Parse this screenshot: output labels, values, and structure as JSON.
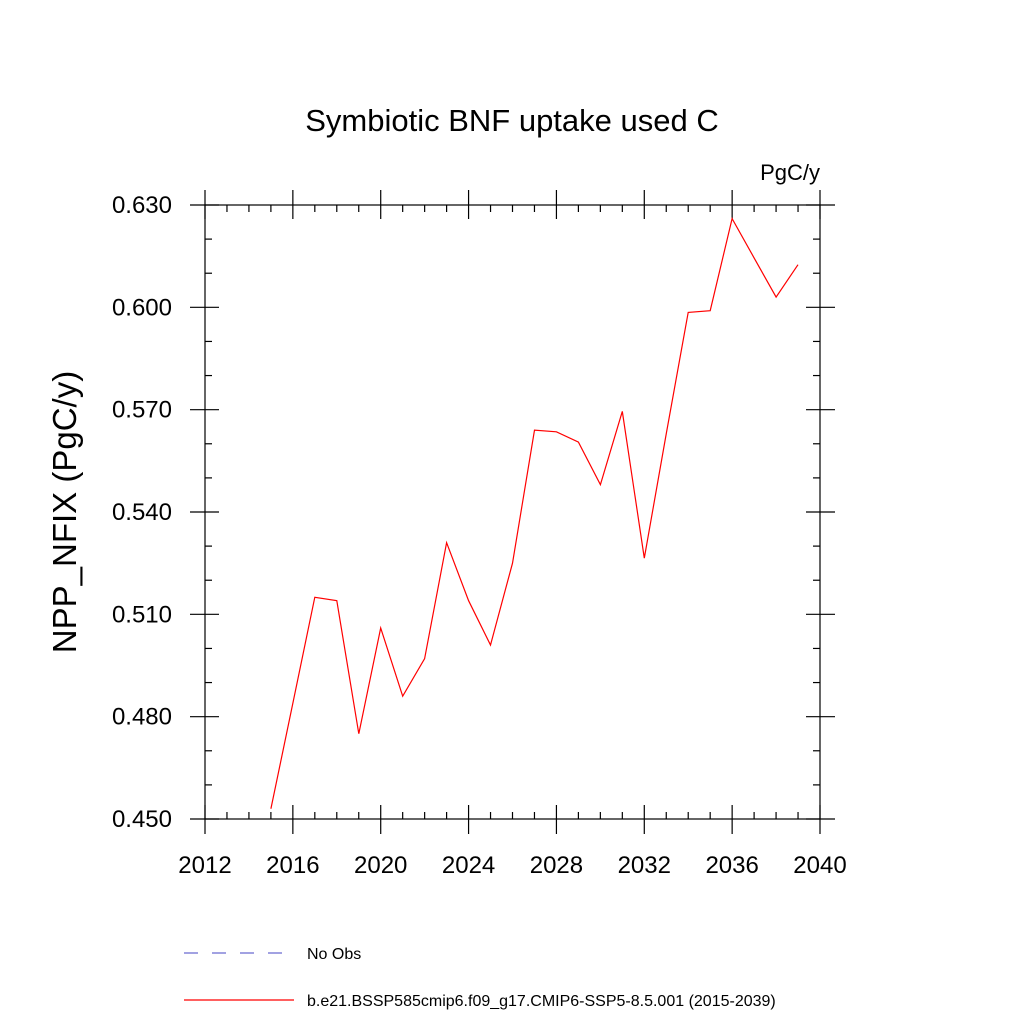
{
  "chart_data": {
    "type": "line",
    "title": "Symbiotic BNF uptake used C",
    "units": "PgC/y",
    "xlabel": "",
    "ylabel": "NPP_NFIX  (PgC/y)",
    "xlim": [
      2012,
      2040
    ],
    "ylim": [
      0.45,
      0.63
    ],
    "xticks": [
      2012,
      2016,
      2020,
      2024,
      2028,
      2032,
      2036,
      2040
    ],
    "yticks": [
      0.45,
      0.48,
      0.51,
      0.54,
      0.57,
      0.6,
      0.63
    ],
    "ytick_labels": [
      "0.450",
      "0.480",
      "0.510",
      "0.540",
      "0.570",
      "0.600",
      "0.630"
    ],
    "grid": false,
    "legend_position": "bottom",
    "series": [
      {
        "name": "b.e21.BSSP585cmip6.f09_g17.CMIP6-SSP5-8.5.001 (2015-2039)",
        "color": "#ff0000",
        "style": "solid",
        "x": [
          2015,
          2016,
          2017,
          2018,
          2019,
          2020,
          2021,
          2022,
          2023,
          2024,
          2025,
          2026,
          2027,
          2028,
          2029,
          2030,
          2031,
          2032,
          2033,
          2034,
          2035,
          2036,
          2037,
          2038,
          2039
        ],
        "y": [
          0.453,
          0.484,
          0.515,
          0.514,
          0.475,
          0.506,
          0.486,
          0.497,
          0.531,
          0.514,
          0.501,
          0.525,
          0.564,
          0.5635,
          0.5605,
          0.548,
          0.5695,
          0.5265,
          0.563,
          0.5985,
          0.599,
          0.626,
          0.6145,
          0.603,
          0.6125
        ]
      },
      {
        "name": "No Obs",
        "color": "#6b6bd0",
        "style": "dashed",
        "x": [],
        "y": []
      }
    ]
  }
}
